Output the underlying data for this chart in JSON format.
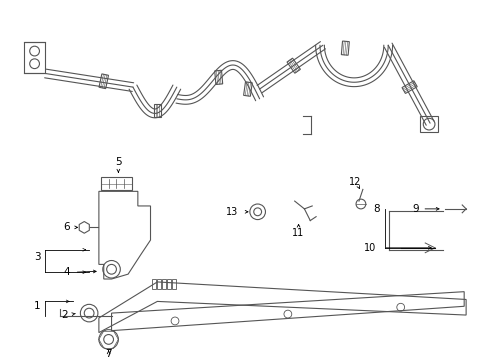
{
  "background_color": "#ffffff",
  "line_color": "#555555",
  "label_color": "#000000",
  "fig_width": 4.9,
  "fig_height": 3.6,
  "dpi": 100
}
